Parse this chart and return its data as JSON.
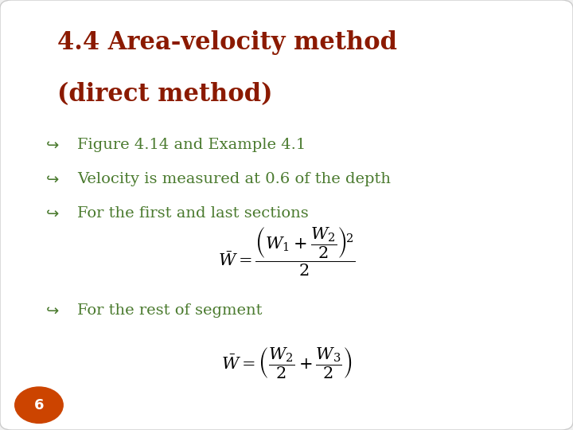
{
  "title_line1": "4.4 Area-velocity method",
  "title_line2": "(direct method)",
  "title_color": "#8B1A00",
  "bullet_color": "#4A7A2E",
  "bullets": [
    "Figure 4.14 and Example 4.1",
    "Velocity is measured at 0.6 of the depth",
    "For the first and last sections",
    "For the rest of segment"
  ],
  "bg_color": "#FFFFFF",
  "slide_bg": "#F0F0F0",
  "page_number": "6",
  "page_circle_color": "#CC4400"
}
